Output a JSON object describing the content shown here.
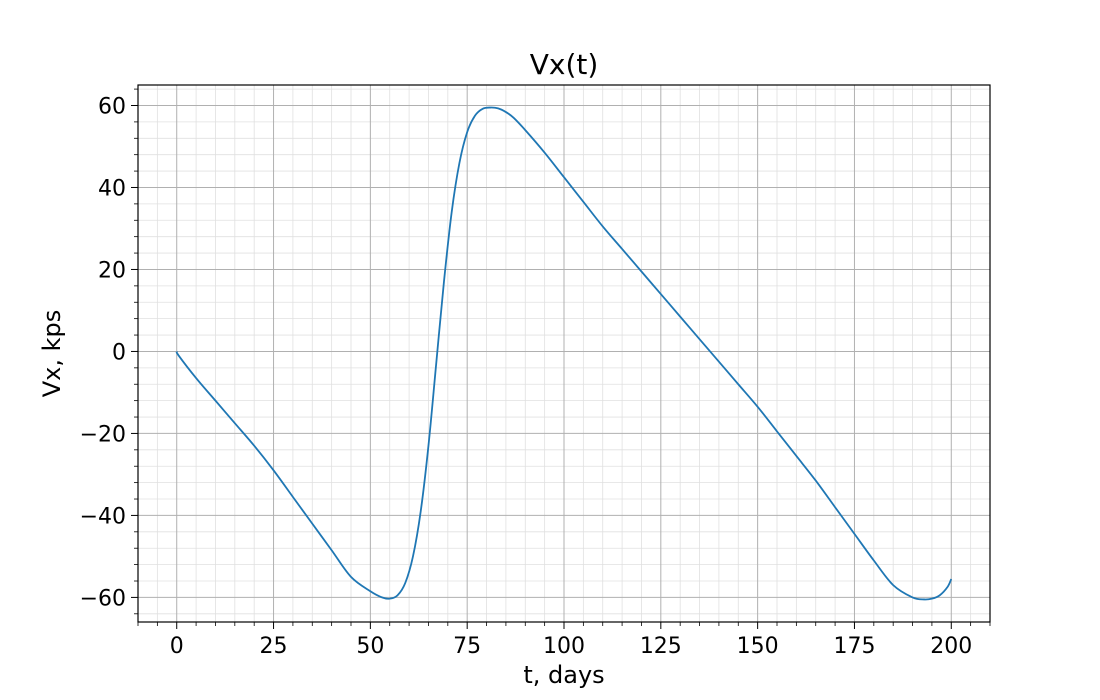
{
  "chart_data": {
    "type": "line",
    "title": "Vx(t)",
    "xlabel": "t, days",
    "ylabel": "Vx, kps",
    "xlim": [
      -10,
      210
    ],
    "ylim": [
      -66,
      65
    ],
    "x_ticks": [
      0,
      25,
      50,
      75,
      100,
      125,
      150,
      175,
      200
    ],
    "x_tick_labels": [
      "0",
      "25",
      "50",
      "75",
      "100",
      "125",
      "150",
      "175",
      "200"
    ],
    "y_ticks": [
      -60,
      -40,
      -20,
      0,
      20,
      40,
      60
    ],
    "y_tick_labels": [
      "−60",
      "−40",
      "−20",
      "0",
      "20",
      "40",
      "60"
    ],
    "grid": "major and minor",
    "line_color": "#1f77b4",
    "series": [
      {
        "x": [
          0,
          0.5,
          5,
          10,
          15,
          20,
          25,
          30,
          35,
          40,
          45,
          50,
          53,
          55,
          57,
          59,
          61,
          63,
          65,
          67,
          69,
          71,
          73,
          75,
          77,
          79,
          81,
          83,
          85,
          87,
          90,
          95,
          100,
          105,
          110,
          115,
          120,
          125,
          130,
          135,
          140,
          145,
          150,
          155,
          160,
          165,
          170,
          175,
          180,
          185,
          190,
          193,
          195,
          197,
          199,
          200
        ],
        "y": [
          0,
          -1,
          -6.5,
          -12,
          -17.5,
          -23,
          -29,
          -35.5,
          -42,
          -48.5,
          -55,
          -58.5,
          -60,
          -60.3,
          -59.5,
          -56.5,
          -50,
          -39,
          -23,
          -3,
          17,
          34,
          46,
          53.5,
          57.5,
          59.2,
          59.5,
          59.3,
          58.4,
          57,
          54,
          48.5,
          42.5,
          36.5,
          30.5,
          25,
          19.5,
          14,
          8.5,
          3,
          -2.5,
          -8,
          -13.5,
          -19.5,
          -25.5,
          -31.5,
          -38,
          -44.5,
          -51,
          -57,
          -60,
          -60.5,
          -60.3,
          -59.5,
          -57.5,
          -55.5
        ]
      }
    ]
  }
}
